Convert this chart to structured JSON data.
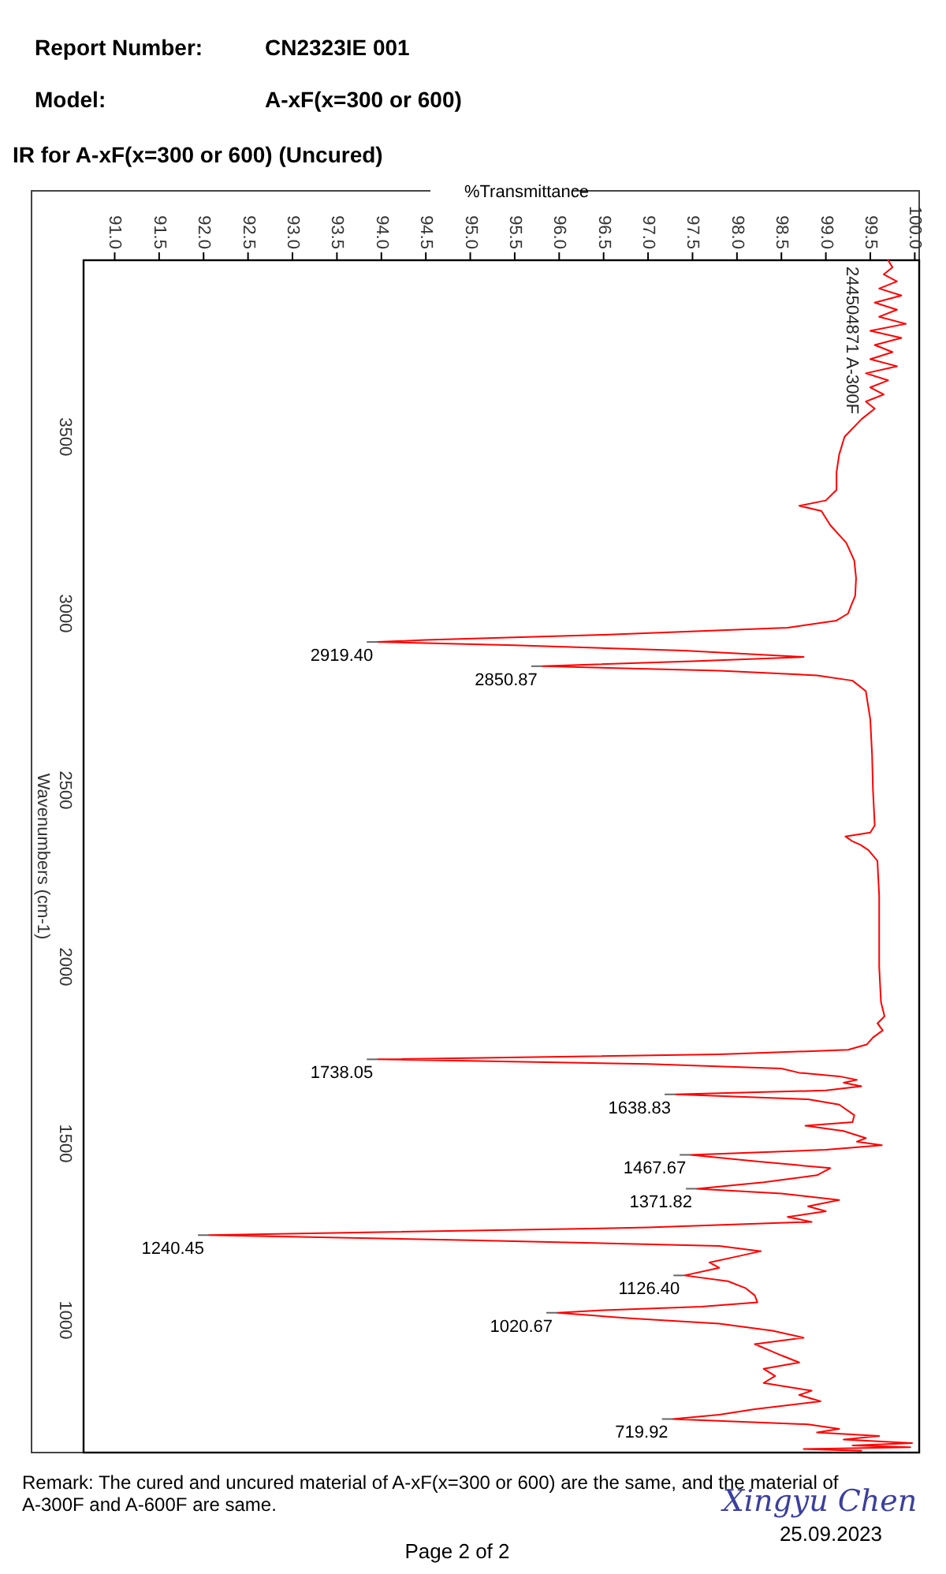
{
  "chart_data": {
    "type": "line",
    "title": "IR for A-xF(x=300 or 600) (Uncured)",
    "xlabel": "%Transmittance",
    "ylabel": "Wavenumbers (cm-1)",
    "xlim": [
      90.65,
      100.05
    ],
    "xticks": [
      {
        "value": 91,
        "label": "91.0"
      },
      91.5,
      {
        "value": 92,
        "label": "92.0"
      },
      92.5,
      {
        "value": 93,
        "label": "93.0"
      },
      93.5,
      {
        "value": 94,
        "label": "94.0"
      },
      94.5,
      {
        "value": 95,
        "label": "95.0"
      },
      95.5,
      {
        "value": 96,
        "label": "96.0"
      },
      96.5,
      {
        "value": 97,
        "label": "97.0"
      },
      97.5,
      {
        "value": 98,
        "label": "98.0"
      },
      98.5,
      {
        "value": 99,
        "label": "99.0"
      },
      99.5,
      {
        "value": 100,
        "label": "100.0"
      }
    ],
    "ylim": [
      625,
      4000
    ],
    "yticks": [
      3500,
      3000,
      2500,
      2000,
      1500,
      1000
    ],
    "grid": false,
    "marker": "none",
    "line_style": "solid",
    "series": [
      {
        "name": "244504871 A-300F",
        "color": "#ff0000",
        "x": [
          99.7,
          99.75,
          99.65,
          99.8,
          99.6,
          99.85,
          99.55,
          99.8,
          99.6,
          99.9,
          99.5,
          99.85,
          99.55,
          99.75,
          99.5,
          99.8,
          99.45,
          99.7,
          99.5,
          99.65,
          99.45,
          99.55,
          99.4,
          99.21,
          99.15,
          99.12,
          99.12,
          99.0,
          98.7,
          98.95,
          99.05,
          99.23,
          99.32,
          99.34,
          99.33,
          99.28,
          99.25,
          99.12,
          98.57,
          96.5,
          94.5,
          93.96,
          95.5,
          97.4,
          98.75,
          97.5,
          95.81,
          97.8,
          98.9,
          99.3,
          99.45,
          99.5,
          99.52,
          99.53,
          99.55,
          99.5,
          99.22,
          99.3,
          99.39,
          99.48,
          99.58,
          99.6,
          99.6,
          99.62,
          99.66,
          99.58,
          99.64,
          99.53,
          99.46,
          99.25,
          97.8,
          93.96,
          97.0,
          98.5,
          98.7,
          99.15,
          99.35,
          99.2,
          99.4,
          99.0,
          97.31,
          98.8,
          99.15,
          99.32,
          99.3,
          98.77,
          99.2,
          99.45,
          99.35,
          99.63,
          99.0,
          97.48,
          98.2,
          99.05,
          98.9,
          98.3,
          97.55,
          98.5,
          99.15,
          98.8,
          99.0,
          98.57,
          98.84,
          97.0,
          92.06,
          95.0,
          97.8,
          98.27,
          98.0,
          97.69,
          97.8,
          97.41,
          97.9,
          98.1,
          98.2,
          98.23,
          97.6,
          96.5,
          95.98,
          96.8,
          97.8,
          98.4,
          98.75,
          98.2,
          98.36,
          98.5,
          98.7,
          98.3,
          98.43,
          98.3,
          98.84,
          98.7,
          98.94,
          98.2,
          97.8,
          97.28,
          98.8,
          99.15,
          98.9,
          99.6,
          99.2,
          99.97,
          99.3,
          99.95,
          98.75,
          99.4
        ],
        "values": [
          4000,
          3980,
          3960,
          3940,
          3920,
          3900,
          3880,
          3860,
          3840,
          3820,
          3800,
          3780,
          3760,
          3740,
          3720,
          3700,
          3680,
          3660,
          3640,
          3620,
          3600,
          3580,
          3550,
          3500,
          3450,
          3400,
          3350,
          3320,
          3305,
          3290,
          3250,
          3200,
          3150,
          3100,
          3050,
          3020,
          3000,
          2980,
          2960,
          2940,
          2925,
          2919.4,
          2910,
          2895,
          2877,
          2865,
          2850.87,
          2838,
          2825,
          2810,
          2780,
          2700,
          2600,
          2500,
          2400,
          2380,
          2369,
          2355,
          2345,
          2330,
          2300,
          2200,
          2000,
          1900,
          1860,
          1840,
          1820,
          1800,
          1780,
          1765,
          1752,
          1738.05,
          1725,
          1712,
          1700,
          1690,
          1680,
          1672,
          1662,
          1650,
          1638.83,
          1625,
          1610,
          1580,
          1560,
          1550,
          1535,
          1515,
          1505,
          1495,
          1482,
          1467.67,
          1450,
          1430,
          1410,
          1390,
          1371.82,
          1358,
          1340,
          1322,
          1308,
          1292,
          1278,
          1262,
          1240.45,
          1226,
          1210,
          1195,
          1180,
          1163,
          1148,
          1126.4,
          1110,
          1090,
          1070,
          1050,
          1038,
          1028,
          1020.67,
          1005,
          990,
          970,
          950,
          932,
          915,
          900,
          880,
          862,
          842,
          822,
          800,
          788,
          770,
          748,
          732,
          719.92,
          705,
          692,
          682,
          672,
          662,
          652,
          645,
          640,
          635,
          630
        ]
      }
    ],
    "annotations": [
      "Report Number:",
      "CN2323IE 001",
      "Model:",
      "A-xF(x=300 or 600)",
      "Remark: The cured and uncured material of A-xF(x=300 or 600) are the same, and the material of A-300F and A-600F are same.",
      "Page 2 of 2",
      "Xingyu Chen",
      "25.09.2023",
      {
        "text": "2919.40",
        "x": 93.96,
        "y": 2919.4
      },
      {
        "text": "2850.87",
        "x": 95.81,
        "y": 2850.87
      },
      {
        "text": "1738.05",
        "x": 93.96,
        "y": 1738.05
      },
      {
        "text": "1638.83",
        "x": 97.31,
        "y": 1638.83
      },
      {
        "text": "1467.67",
        "x": 97.48,
        "y": 1467.67
      },
      {
        "text": "1371.82",
        "x": 97.55,
        "y": 1371.82
      },
      {
        "text": "1240.45",
        "x": 92.06,
        "y": 1240.45
      },
      {
        "text": "1126.40",
        "x": 97.41,
        "y": 1126.4
      },
      {
        "text": "1020.67",
        "x": 95.98,
        "y": 1020.67
      },
      {
        "text": "719.92",
        "x": 97.28,
        "y": 719.92
      }
    ]
  }
}
